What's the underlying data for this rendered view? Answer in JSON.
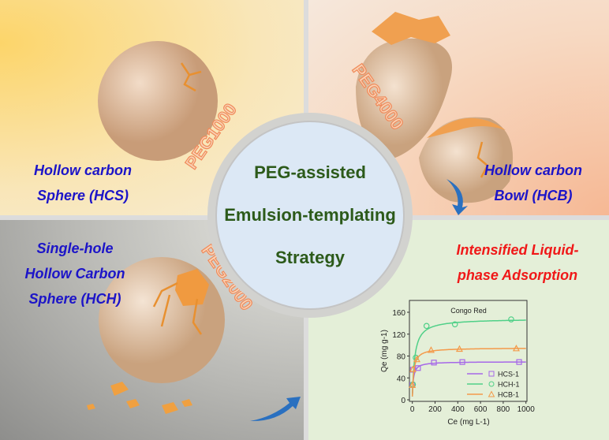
{
  "quadrants": {
    "top_left": {
      "label_lines": [
        "Hollow carbon",
        "Sphere (HCS)"
      ],
      "peg": "PEG1000"
    },
    "top_right": {
      "label_lines": [
        "Hollow carbon",
        "Bowl (HCB)"
      ],
      "peg": "PEG4000"
    },
    "bottom_left": {
      "label_lines": [
        "Single-hole",
        "Hollow Carbon",
        "Sphere (HCH)"
      ],
      "peg": "PEG2000"
    },
    "bottom_right": {
      "label_lines": [
        "Intensified Liquid-",
        "phase Adsorption"
      ]
    }
  },
  "center": {
    "lines": [
      "PEG-assisted",
      "Emulsion-templating",
      "Strategy"
    ]
  },
  "colors": {
    "label_blue": "#1c14c8",
    "label_red": "#f01818",
    "center_green": "#2c5a1a"
  },
  "chart_data": {
    "type": "scatter",
    "title": "Congo Red",
    "xlabel": "Ce (mg L-1)",
    "ylabel": "Qe (mg g-1)",
    "xlim": [
      0,
      1000
    ],
    "ylim": [
      0,
      170
    ],
    "xticks": [
      0,
      200,
      400,
      600,
      800,
      1000
    ],
    "yticks": [
      0,
      40,
      80,
      120,
      160
    ],
    "legend": "bottom-right",
    "series": [
      {
        "name": "HCS-1",
        "color": "#a668e8",
        "marker": "square",
        "points": [
          [
            0,
            27
          ],
          [
            5,
            55
          ],
          [
            50,
            58
          ],
          [
            190,
            68
          ],
          [
            440,
            69
          ],
          [
            940,
            69
          ]
        ]
      },
      {
        "name": "HCH-1",
        "color": "#50d088",
        "marker": "circle",
        "points": [
          [
            5,
            28
          ],
          [
            30,
            77
          ],
          [
            125,
            135
          ],
          [
            375,
            138
          ],
          [
            870,
            147
          ]
        ]
      },
      {
        "name": "HCB-1",
        "color": "#f49a4a",
        "marker": "triangle",
        "points": [
          [
            0,
            27
          ],
          [
            5,
            56
          ],
          [
            40,
            74
          ],
          [
            165,
            91
          ],
          [
            415,
            93
          ],
          [
            915,
            94
          ]
        ]
      }
    ]
  }
}
